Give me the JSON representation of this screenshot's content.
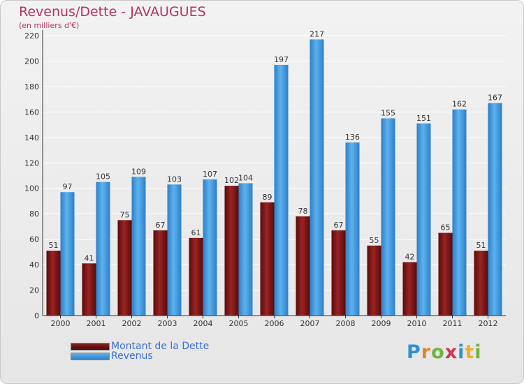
{
  "chart_data": {
    "type": "bar",
    "title": "Revenus/Dette - JAVAUGUES",
    "subtitle": "(en milliers d'€)",
    "categories": [
      "2000",
      "2001",
      "2002",
      "2003",
      "2004",
      "2005",
      "2006",
      "2007",
      "2008",
      "2009",
      "2010",
      "2011",
      "2012"
    ],
    "series": [
      {
        "name": "Montant de la Dette",
        "color": "#7a1414",
        "values": [
          51,
          41,
          75,
          67,
          61,
          102,
          89,
          78,
          67,
          55,
          42,
          65,
          51
        ]
      },
      {
        "name": "Revenus",
        "color": "#3f9de3",
        "values": [
          97,
          105,
          109,
          103,
          107,
          104,
          197,
          217,
          136,
          155,
          151,
          162,
          167
        ]
      }
    ],
    "ylim": [
      0,
      220
    ],
    "yticks": [
      0,
      20,
      40,
      60,
      80,
      100,
      120,
      140,
      160,
      180,
      200,
      220
    ],
    "grid": true,
    "legend_position": "bottom-left"
  },
  "logo": {
    "text": "Proxiti"
  }
}
